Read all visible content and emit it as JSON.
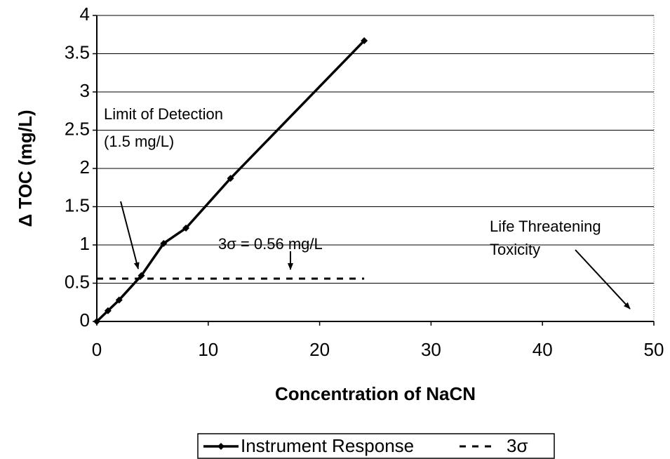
{
  "chart_data": {
    "type": "line",
    "xlabel": "Concentration of NaCN",
    "ylabel": "Δ TOC (mg/L)",
    "xlim": [
      0,
      50
    ],
    "xticks": [
      0,
      10,
      20,
      30,
      40,
      50
    ],
    "ylim": [
      0,
      4
    ],
    "yticks": [
      0,
      0.5,
      1,
      1.5,
      2,
      2.5,
      3,
      3.5,
      4
    ],
    "grid": true,
    "legend": "bottom",
    "series": [
      {
        "name": "Instrument Response",
        "color": "#000000",
        "style": "solid",
        "marker": "diamond",
        "x": [
          0,
          1,
          2,
          4,
          6,
          8,
          12,
          24
        ],
        "values": [
          0,
          0.14,
          0.28,
          0.6,
          1.02,
          1.22,
          1.87,
          3.67
        ]
      },
      {
        "name": "3σ",
        "color": "#000000",
        "style": "dashed",
        "marker": "none",
        "x": [
          0,
          24
        ],
        "values": [
          0.56,
          0.56
        ]
      }
    ],
    "annotations": [
      "Limit of Detection",
      "(1.5 mg/L)",
      "3σ = 0.56 mg/L",
      "Life Threatening",
      "Toxicity"
    ]
  }
}
